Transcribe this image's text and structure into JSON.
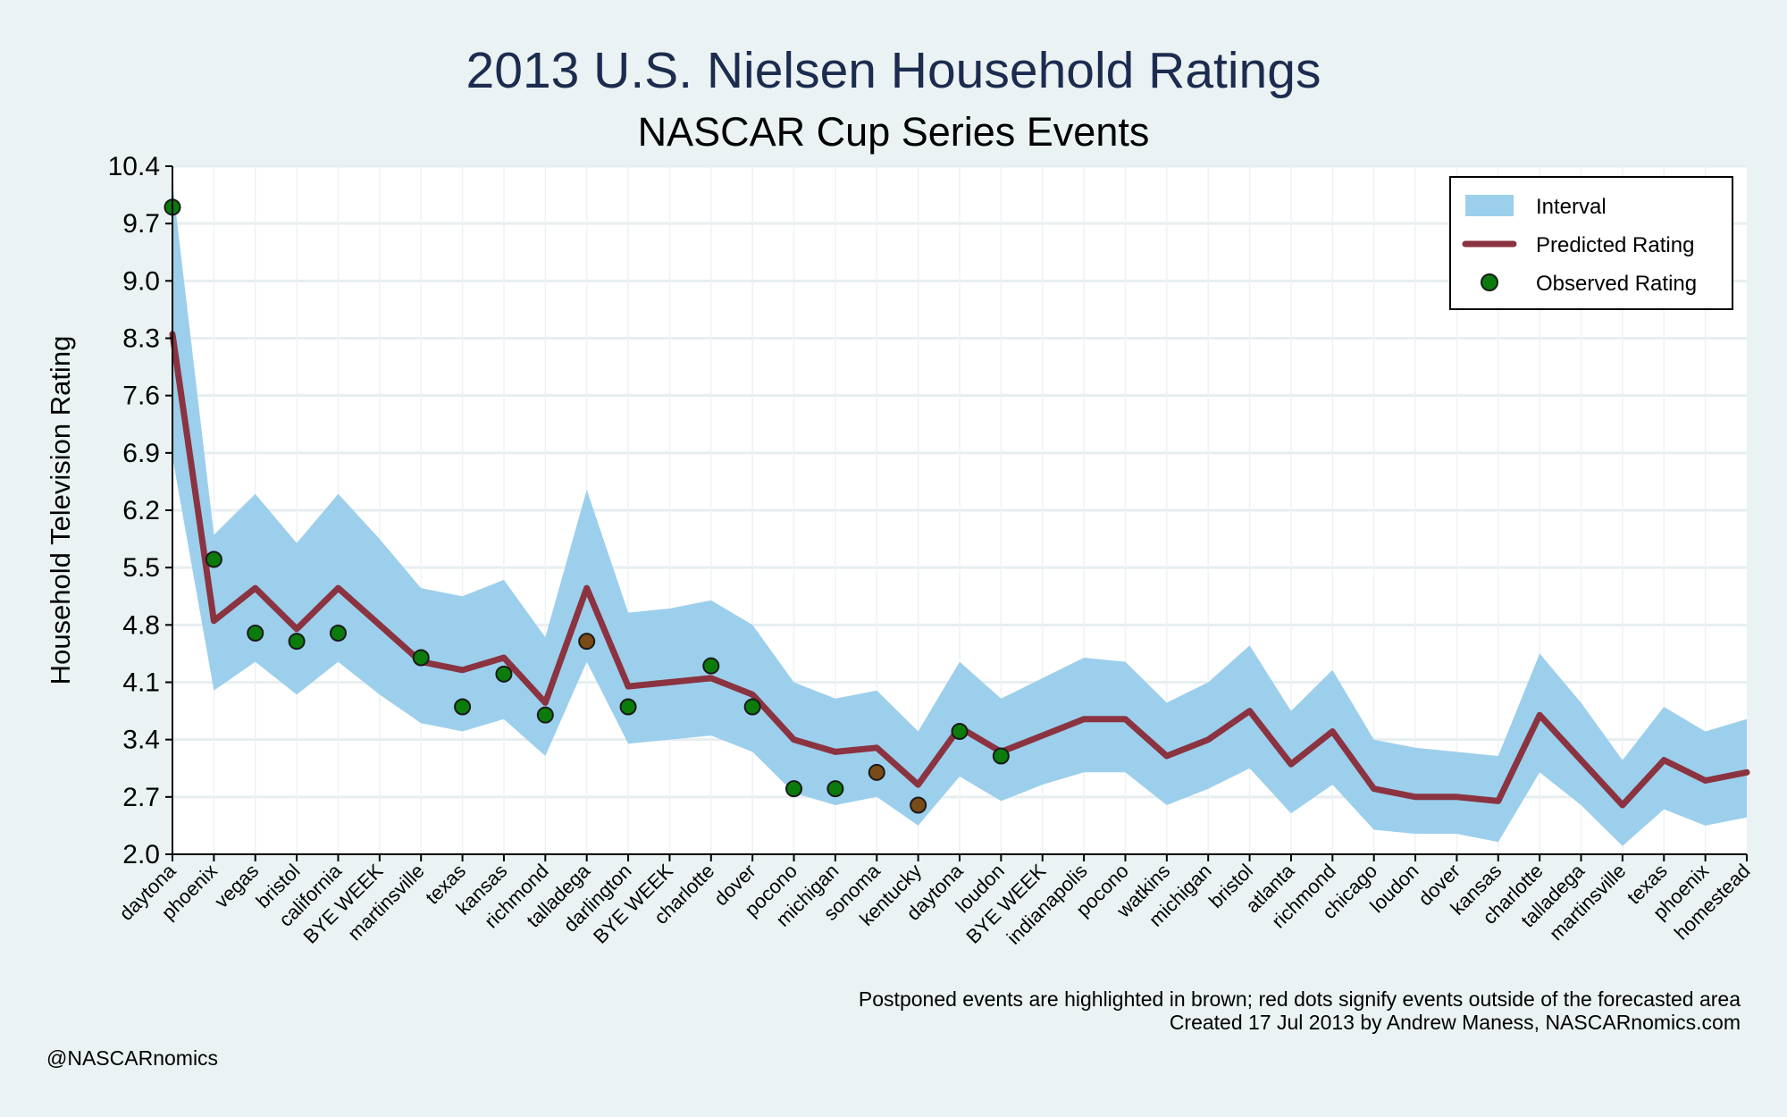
{
  "chart_data": {
    "type": "line",
    "title": "2013 U.S. Nielsen Household Ratings",
    "subtitle": "NASCAR Cup Series Events",
    "ylabel": "Household Television Rating",
    "xlabel": "",
    "ylim": [
      2.0,
      10.4
    ],
    "yticks": [
      2.0,
      2.7,
      3.4,
      4.1,
      4.8,
      5.5,
      6.2,
      6.9,
      7.6,
      8.3,
      9.0,
      9.7,
      10.4
    ],
    "ytick_labels": [
      "2.0",
      "2.7",
      "3.4",
      "4.1",
      "4.8",
      "5.5",
      "6.2",
      "6.9",
      "7.6",
      "8.3",
      "9.0",
      "9.7",
      "10.4"
    ],
    "grid": true,
    "legend_position": "top-right",
    "categories": [
      "daytona",
      "phoenix",
      "vegas",
      "bristol",
      "california",
      "BYE WEEK",
      "martinsville",
      "texas",
      "kansas",
      "richmond",
      "talladega",
      "darlington",
      "BYE WEEK",
      "charlotte",
      "dover",
      "pocono",
      "michigan",
      "sonoma",
      "kentucky",
      "daytona",
      "loudon",
      "BYE WEEK",
      "indianapolis",
      "pocono",
      "watkins",
      "michigan",
      "bristol",
      "atlanta",
      "richmond",
      "chicago",
      "loudon",
      "dover",
      "kansas",
      "charlotte",
      "talladega",
      "martinsville",
      "texas",
      "phoenix",
      "homestead"
    ],
    "series": [
      {
        "name": "Interval",
        "kind": "band",
        "color": "#9ccfec",
        "upper": [
          10.2,
          5.9,
          6.4,
          5.8,
          6.4,
          5.85,
          5.25,
          5.15,
          5.35,
          4.65,
          6.45,
          4.95,
          5.0,
          5.1,
          4.8,
          4.1,
          3.9,
          4.0,
          3.5,
          4.35,
          3.9,
          4.15,
          4.4,
          4.35,
          3.85,
          4.1,
          4.55,
          3.75,
          4.25,
          3.4,
          3.3,
          3.25,
          3.2,
          4.45,
          3.85,
          3.15,
          3.8,
          3.5,
          3.65
        ],
        "lower": [
          6.85,
          4.0,
          4.35,
          3.95,
          4.35,
          3.95,
          3.6,
          3.5,
          3.65,
          3.2,
          4.35,
          3.35,
          3.4,
          3.45,
          3.25,
          2.75,
          2.6,
          2.7,
          2.35,
          2.95,
          2.65,
          2.85,
          3.0,
          3.0,
          2.6,
          2.8,
          3.05,
          2.5,
          2.85,
          2.3,
          2.25,
          2.25,
          2.15,
          3.0,
          2.6,
          2.1,
          2.55,
          2.35,
          2.45
        ]
      },
      {
        "name": "Predicted Rating",
        "kind": "line",
        "color": "#8b3340",
        "values": [
          8.35,
          4.85,
          5.25,
          4.75,
          5.25,
          4.8,
          4.35,
          4.25,
          4.4,
          3.85,
          5.25,
          4.05,
          4.1,
          4.15,
          3.95,
          3.4,
          3.25,
          3.3,
          2.85,
          3.55,
          3.25,
          3.45,
          3.65,
          3.65,
          3.2,
          3.4,
          3.75,
          3.1,
          3.5,
          2.8,
          2.7,
          2.7,
          2.65,
          3.7,
          3.15,
          2.6,
          3.15,
          2.9,
          3.0
        ]
      },
      {
        "name": "Observed Rating",
        "kind": "scatter",
        "color": "#0b7b0b",
        "postponed_color": "#7a4a17",
        "values": [
          9.9,
          5.6,
          4.7,
          4.6,
          4.7,
          null,
          4.4,
          3.8,
          4.2,
          3.7,
          4.6,
          3.8,
          null,
          4.3,
          3.8,
          2.8,
          2.8,
          3.0,
          2.6,
          3.5,
          3.2,
          null,
          null,
          null,
          null,
          null,
          null,
          null,
          null,
          null,
          null,
          null,
          null,
          null,
          null,
          null,
          null,
          null,
          null
        ],
        "postponed": [
          10,
          17,
          18
        ]
      }
    ],
    "note": "Postponed events are highlighted in brown; red dots signify events outside of the forecasted area",
    "credit": "Created 17 Jul 2013 by Andrew Maness, NASCARnomics.com"
  },
  "handle": "@NASCARnomics"
}
